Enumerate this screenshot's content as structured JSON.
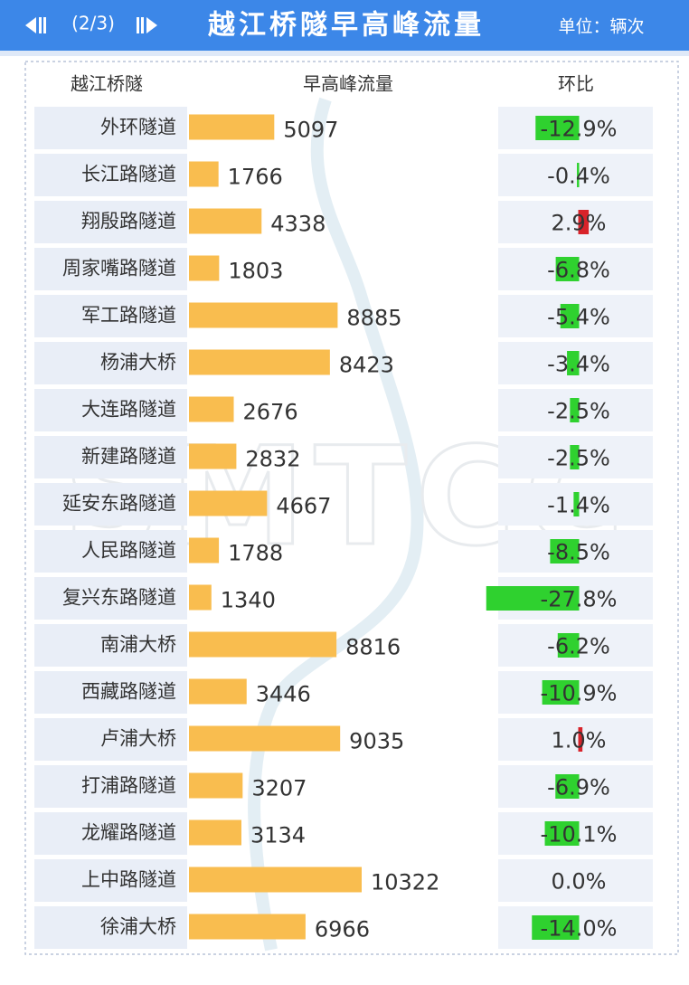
{
  "header": {
    "page": "(2/3)",
    "title": "越江桥隧早高峰流量",
    "unit": "单位：辆次"
  },
  "watermark": "SMTCC",
  "table": {
    "columns": [
      "越江桥隧",
      "早高峰流量",
      "环比"
    ],
    "flow_color": "#f9bd4f",
    "negative_color": "#2fd12f",
    "positive_color": "#d8232a",
    "rows": [
      {
        "name": "外环隧道",
        "flow": 5097,
        "change": -12.9,
        "change_label": "-12.9%"
      },
      {
        "name": "长江路隧道",
        "flow": 1766,
        "change": -0.4,
        "change_label": "-0.4%"
      },
      {
        "name": "翔殷路隧道",
        "flow": 4338,
        "change": 2.9,
        "change_label": "2.9%"
      },
      {
        "name": "周家嘴路隧道",
        "flow": 1803,
        "change": -6.8,
        "change_label": "-6.8%"
      },
      {
        "name": "军工路隧道",
        "flow": 8885,
        "change": -5.4,
        "change_label": "-5.4%"
      },
      {
        "name": "杨浦大桥",
        "flow": 8423,
        "change": -3.4,
        "change_label": "-3.4%"
      },
      {
        "name": "大连路隧道",
        "flow": 2676,
        "change": -2.5,
        "change_label": "-2.5%"
      },
      {
        "name": "新建路隧道",
        "flow": 2832,
        "change": -2.5,
        "change_label": "-2.5%"
      },
      {
        "name": "延安东路隧道",
        "flow": 4667,
        "change": -1.4,
        "change_label": "-1.4%"
      },
      {
        "name": "人民路隧道",
        "flow": 1788,
        "change": -8.5,
        "change_label": "-8.5%"
      },
      {
        "name": "复兴东路隧道",
        "flow": 1340,
        "change": -27.8,
        "change_label": "-27.8%"
      },
      {
        "name": "南浦大桥",
        "flow": 8816,
        "change": -6.2,
        "change_label": "-6.2%"
      },
      {
        "name": "西藏路隧道",
        "flow": 3446,
        "change": -10.9,
        "change_label": "-10.9%"
      },
      {
        "name": "卢浦大桥",
        "flow": 9035,
        "change": 1.0,
        "change_label": "1.0%"
      },
      {
        "name": "打浦路隧道",
        "flow": 3207,
        "change": -6.9,
        "change_label": "-6.9%"
      },
      {
        "name": "龙耀路隧道",
        "flow": 3134,
        "change": -10.1,
        "change_label": "-10.1%"
      },
      {
        "name": "上中路隧道",
        "flow": 10322,
        "change": 0.0,
        "change_label": "0.0%"
      },
      {
        "name": "徐浦大桥",
        "flow": 6966,
        "change": -14.0,
        "change_label": "-14.0%"
      }
    ]
  }
}
